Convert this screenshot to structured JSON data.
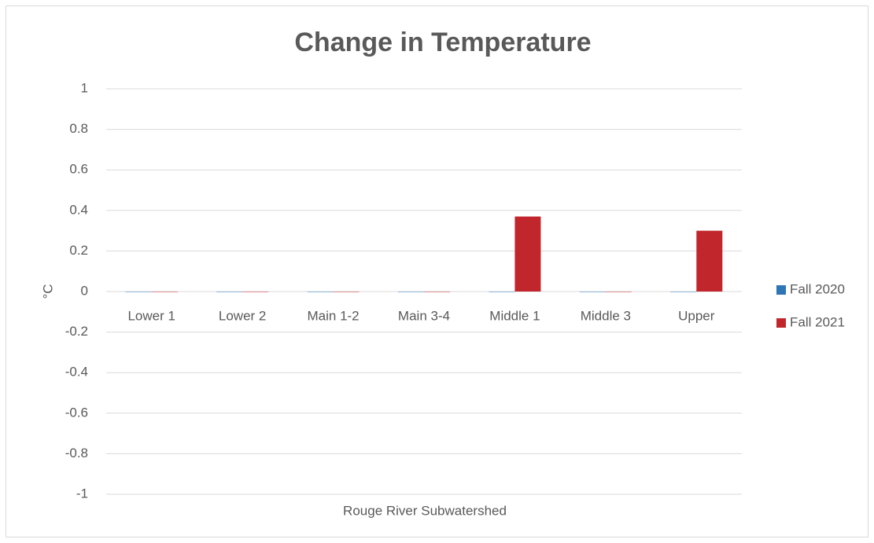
{
  "chart_data": {
    "type": "bar",
    "title": "Change in Temperature",
    "x_label": "Rouge River Subwatershed",
    "y_label": "°C",
    "categories": [
      "Lower 1",
      "Lower 2",
      "Main 1-2",
      "Main 3-4",
      "Middle 1",
      "Middle 3",
      "Upper"
    ],
    "series": [
      {
        "name": "Fall 2020",
        "color": "#2e75b6",
        "values": [
          0,
          0,
          0,
          0,
          0,
          0,
          0
        ]
      },
      {
        "name": "Fall 2021",
        "color": "#c0262c",
        "values": [
          0,
          0,
          0,
          0,
          0.37,
          0,
          0.3
        ]
      }
    ],
    "ylim": [
      -1,
      1
    ],
    "yticks": [
      -1,
      -0.8,
      -0.6,
      -0.4,
      -0.2,
      0,
      0.2,
      0.4,
      0.6,
      0.8,
      1
    ],
    "grid": true,
    "legend": "right"
  }
}
